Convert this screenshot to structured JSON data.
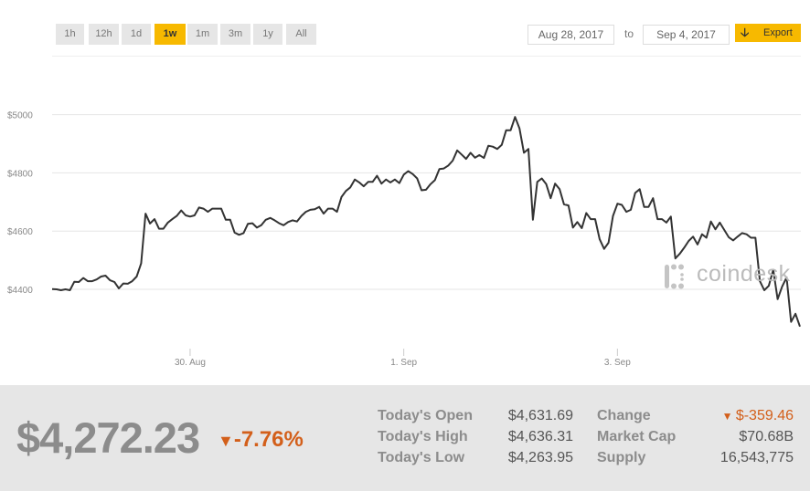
{
  "range_buttons": [
    {
      "label": "1h",
      "active": false
    },
    {
      "label": "12h",
      "active": false
    },
    {
      "label": "1d",
      "active": false
    },
    {
      "label": "1w",
      "active": true
    },
    {
      "label": "1m",
      "active": false
    },
    {
      "label": "3m",
      "active": false
    },
    {
      "label": "1y",
      "active": false
    },
    {
      "label": "All",
      "active": false
    }
  ],
  "date_from": "Aug 28, 2017",
  "date_to_label": "to",
  "date_to": "Sep 4, 2017",
  "export_label": "Export",
  "export_icon": "arrow-down-icon",
  "watermark": "coindesk",
  "colors": {
    "accent": "#f7b900",
    "line": "#333333",
    "negative": "#d35f1a"
  },
  "chart_data": {
    "type": "line",
    "x_start": "2017-08-28 17:00",
    "x_step_hours": 1,
    "ylim": [
      4250,
      5000
    ],
    "y_ticks": [
      {
        "value": 4400,
        "label": "$4400"
      },
      {
        "value": 4600,
        "label": "$4600"
      },
      {
        "value": 4800,
        "label": "$4800"
      },
      {
        "value": 5000,
        "label": "$5000"
      }
    ],
    "x_ticks": [
      {
        "date": "2017-08-30",
        "label": "30. Aug"
      },
      {
        "date": "2017-09-01",
        "label": "1. Sep"
      },
      {
        "date": "2017-09-03",
        "label": "3. Sep"
      }
    ],
    "grid": true,
    "values": [
      4401,
      4400,
      4397,
      4400,
      4397,
      4426,
      4425,
      4439,
      4428,
      4428,
      4434,
      4444,
      4447,
      4431,
      4425,
      4403,
      4420,
      4419,
      4428,
      4444,
      4489,
      4660,
      4626,
      4641,
      4608,
      4608,
      4629,
      4641,
      4652,
      4671,
      4654,
      4650,
      4654,
      4681,
      4677,
      4666,
      4677,
      4677,
      4677,
      4639,
      4639,
      4595,
      4587,
      4593,
      4625,
      4627,
      4612,
      4620,
      4639,
      4645,
      4637,
      4627,
      4620,
      4631,
      4637,
      4633,
      4652,
      4666,
      4673,
      4675,
      4683,
      4660,
      4677,
      4677,
      4666,
      4717,
      4738,
      4750,
      4777,
      4767,
      4754,
      4769,
      4769,
      4790,
      4763,
      4777,
      4767,
      4777,
      4765,
      4794,
      4806,
      4796,
      4781,
      4740,
      4742,
      4761,
      4775,
      4813,
      4815,
      4825,
      4842,
      4877,
      4863,
      4848,
      4869,
      4852,
      4861,
      4851,
      4893,
      4890,
      4882,
      4896,
      4946,
      4946,
      4992,
      4953,
      4869,
      4882,
      4639,
      4769,
      4781,
      4761,
      4713,
      4763,
      4744,
      4692,
      4688,
      4612,
      4631,
      4610,
      4662,
      4641,
      4641,
      4572,
      4539,
      4560,
      4652,
      4694,
      4690,
      4666,
      4673,
      4731,
      4744,
      4683,
      4683,
      4713,
      4641,
      4641,
      4629,
      4650,
      4506,
      4522,
      4543,
      4566,
      4581,
      4554,
      4589,
      4577,
      4633,
      4606,
      4629,
      4604,
      4579,
      4568,
      4581,
      4593,
      4589,
      4577,
      4577,
      4428,
      4397,
      4412,
      4467,
      4366,
      4409,
      4441,
      4288,
      4316,
      4272
    ]
  },
  "summary": {
    "price": "$4,272.23",
    "change_pct": "-7.76%",
    "change_pct_icon": "triangle-down-icon",
    "stats": [
      {
        "label": "Today's Open",
        "value": "$4,631.69"
      },
      {
        "label": "Today's High",
        "value": "$4,636.31"
      },
      {
        "label": "Today's Low",
        "value": "$4,263.95"
      },
      {
        "label": "Change",
        "value": "$-359.46",
        "negative": true
      },
      {
        "label": "Market Cap",
        "value": "$70.68B"
      },
      {
        "label": "Supply",
        "value": "16,543,775"
      }
    ]
  }
}
